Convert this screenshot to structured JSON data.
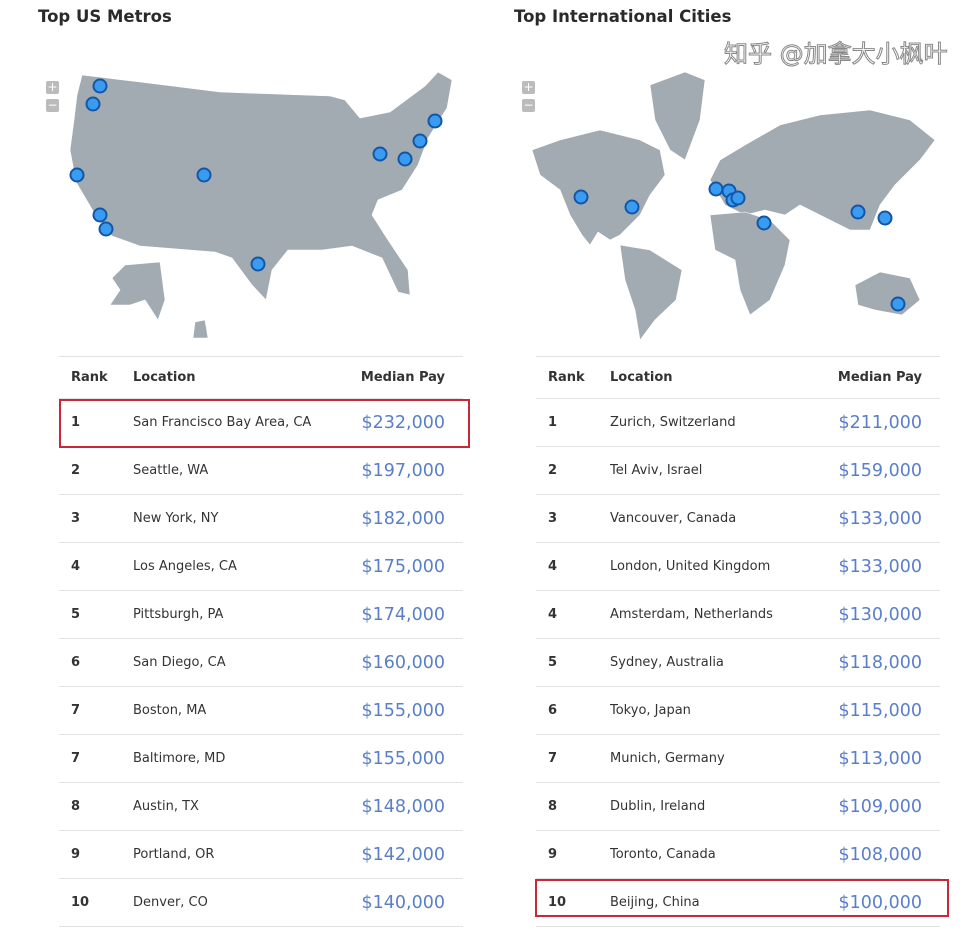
{
  "us": {
    "title": "Top US Metros",
    "headers": {
      "rank": "Rank",
      "location": "Location",
      "pay": "Median Pay"
    },
    "rows": [
      {
        "rank": "1",
        "location": "San Francisco Bay Area, CA",
        "pay": "$232,000"
      },
      {
        "rank": "2",
        "location": "Seattle, WA",
        "pay": "$197,000"
      },
      {
        "rank": "3",
        "location": "New York, NY",
        "pay": "$182,000"
      },
      {
        "rank": "4",
        "location": "Los Angeles, CA",
        "pay": "$175,000"
      },
      {
        "rank": "5",
        "location": "Pittsburgh, PA",
        "pay": "$174,000"
      },
      {
        "rank": "6",
        "location": "San Diego, CA",
        "pay": "$160,000"
      },
      {
        "rank": "7",
        "location": "Boston, MA",
        "pay": "$155,000"
      },
      {
        "rank": "7",
        "location": "Baltimore, MD",
        "pay": "$155,000"
      },
      {
        "rank": "8",
        "location": "Austin, TX",
        "pay": "$148,000"
      },
      {
        "rank": "9",
        "location": "Portland, OR",
        "pay": "$142,000"
      },
      {
        "rank": "10",
        "location": "Denver, CO",
        "pay": "$140,000"
      }
    ]
  },
  "intl": {
    "title": "Top International Cities",
    "headers": {
      "rank": "Rank",
      "location": "Location",
      "pay": "Median Pay"
    },
    "rows": [
      {
        "rank": "1",
        "location": "Zurich, Switzerland",
        "pay": "$211,000"
      },
      {
        "rank": "2",
        "location": "Tel Aviv, Israel",
        "pay": "$159,000"
      },
      {
        "rank": "3",
        "location": "Vancouver, Canada",
        "pay": "$133,000"
      },
      {
        "rank": "4",
        "location": "London, United Kingdom",
        "pay": "$133,000"
      },
      {
        "rank": "4",
        "location": "Amsterdam, Netherlands",
        "pay": "$130,000"
      },
      {
        "rank": "5",
        "location": "Sydney, Australia",
        "pay": "$118,000"
      },
      {
        "rank": "6",
        "location": "Tokyo, Japan",
        "pay": "$115,000"
      },
      {
        "rank": "7",
        "location": "Munich, Germany",
        "pay": "$113,000"
      },
      {
        "rank": "8",
        "location": "Dublin, Ireland",
        "pay": "$109,000"
      },
      {
        "rank": "9",
        "location": "Toronto, Canada",
        "pay": "$108,000"
      },
      {
        "rank": "10",
        "location": "Beijing, China",
        "pay": "$100,000"
      }
    ]
  },
  "zoom": {
    "in": "+",
    "out": "−"
  },
  "watermark": "知乎 @加拿大小枫叶"
}
